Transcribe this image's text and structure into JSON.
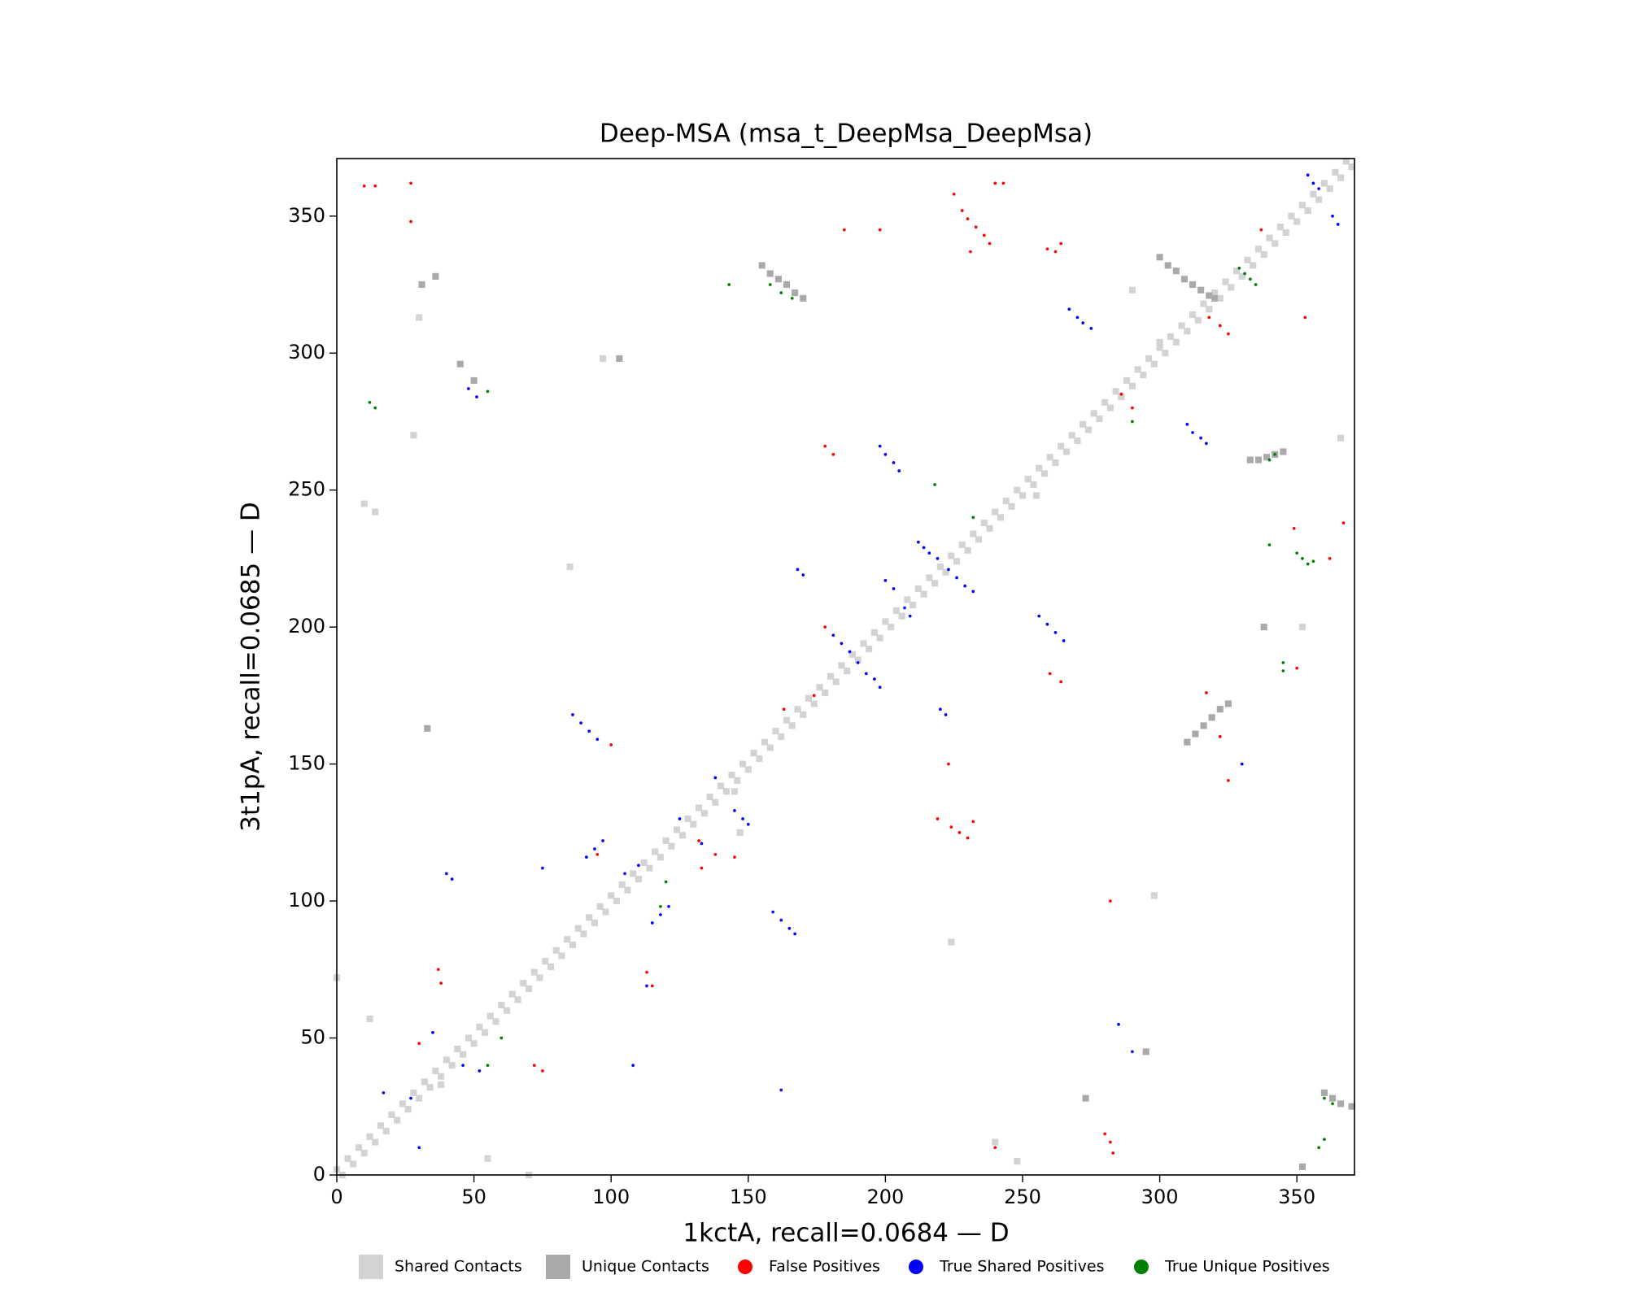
{
  "chart_data": {
    "type": "scatter",
    "title": "Deep-MSA (msa_t_DeepMsa_DeepMsa)",
    "x_label": "1kctA, recall=0.0684 — D",
    "y_label": "3t1pA, recall=0.0685 — D",
    "xlim": [
      0,
      371
    ],
    "ylim": [
      0,
      371
    ],
    "xticks": [
      0,
      50,
      100,
      150,
      200,
      250,
      300,
      350
    ],
    "yticks": [
      0,
      50,
      100,
      150,
      200,
      250,
      300,
      350
    ],
    "legend": "bottom",
    "series": [
      {
        "name": "Shared Contacts",
        "color": "#d3d3d3",
        "marker": "square",
        "x": [
          0,
          4,
          8,
          12,
          16,
          20,
          24,
          28,
          32,
          36,
          40,
          44,
          48,
          52,
          56,
          60,
          64,
          68,
          72,
          76,
          80,
          84,
          88,
          92,
          96,
          100,
          104,
          108,
          112,
          116,
          120,
          124,
          128,
          132,
          136,
          140,
          144,
          148,
          152,
          156,
          160,
          164,
          168,
          172,
          176,
          180,
          184,
          188,
          192,
          196,
          200,
          204,
          208,
          212,
          216,
          220,
          224,
          228,
          232,
          236,
          240,
          244,
          248,
          252,
          256,
          260,
          264,
          268,
          272,
          276,
          280,
          284,
          288,
          292,
          296,
          300,
          304,
          308,
          312,
          316,
          320,
          324,
          328,
          332,
          336,
          340,
          344,
          348,
          352,
          356,
          360,
          364,
          368,
          2,
          6,
          10,
          14,
          18,
          22,
          26,
          30,
          34,
          38,
          42,
          46,
          50,
          54,
          58,
          62,
          66,
          70,
          74,
          78,
          82,
          86,
          90,
          94,
          98,
          102,
          106,
          110,
          114,
          118,
          122,
          126,
          130,
          134,
          138,
          142,
          146,
          150,
          154,
          158,
          162,
          166,
          170,
          174,
          178,
          182,
          186,
          190,
          194,
          198,
          202,
          206,
          210,
          214,
          218,
          222,
          226,
          230,
          234,
          238,
          242,
          246,
          250,
          254,
          258,
          262,
          266,
          270,
          274,
          278,
          282,
          286,
          290,
          294,
          298,
          302,
          306,
          310,
          314,
          318,
          322,
          326,
          330,
          334,
          338,
          342,
          346,
          350,
          354,
          358,
          362,
          366,
          370,
          10,
          14,
          85,
          28,
          30,
          97,
          147,
          145,
          224,
          298,
          300,
          12,
          0,
          55,
          70,
          240,
          248,
          255,
          352,
          366,
          38,
          290
        ],
        "values": [
          2,
          6,
          10,
          14,
          18,
          22,
          26,
          30,
          34,
          38,
          42,
          46,
          50,
          54,
          58,
          62,
          66,
          70,
          74,
          78,
          82,
          86,
          90,
          94,
          98,
          102,
          106,
          110,
          114,
          118,
          122,
          126,
          130,
          134,
          138,
          142,
          146,
          150,
          154,
          158,
          162,
          166,
          170,
          174,
          178,
          182,
          186,
          190,
          194,
          198,
          202,
          206,
          210,
          214,
          218,
          222,
          226,
          230,
          234,
          238,
          242,
          246,
          250,
          254,
          258,
          262,
          266,
          270,
          274,
          278,
          282,
          286,
          290,
          294,
          298,
          302,
          306,
          310,
          314,
          318,
          322,
          326,
          330,
          334,
          338,
          342,
          346,
          350,
          354,
          358,
          362,
          366,
          370,
          0,
          4,
          8,
          12,
          16,
          20,
          24,
          28,
          32,
          36,
          40,
          44,
          48,
          52,
          56,
          60,
          64,
          68,
          72,
          76,
          80,
          84,
          88,
          92,
          96,
          100,
          104,
          108,
          112,
          116,
          120,
          124,
          128,
          132,
          136,
          140,
          144,
          148,
          152,
          156,
          160,
          164,
          168,
          172,
          176,
          180,
          184,
          188,
          192,
          196,
          200,
          204,
          208,
          212,
          216,
          220,
          224,
          228,
          232,
          236,
          240,
          244,
          248,
          252,
          256,
          260,
          264,
          268,
          272,
          276,
          280,
          284,
          288,
          292,
          296,
          300,
          304,
          308,
          312,
          316,
          320,
          324,
          328,
          332,
          336,
          340,
          344,
          348,
          352,
          356,
          360,
          364,
          368,
          245,
          242,
          222,
          270,
          313,
          298,
          125,
          140,
          85,
          102,
          304,
          57,
          72,
          6,
          0,
          12,
          5,
          248,
          200,
          269,
          33,
          323
        ]
      },
      {
        "name": "Unique Contacts",
        "color": "#a9a9a9",
        "marker": "square",
        "x": [
          155,
          158,
          161,
          164,
          167,
          170,
          300,
          303,
          306,
          309,
          312,
          315,
          318,
          320,
          333,
          336,
          339,
          342,
          345,
          310,
          313,
          316,
          319,
          322,
          325,
          360,
          363,
          366,
          370,
          33,
          45,
          50,
          103,
          31,
          36,
          295,
          273,
          352,
          338
        ],
        "values": [
          332,
          329,
          327,
          325,
          322,
          320,
          335,
          332,
          330,
          327,
          325,
          323,
          321,
          320,
          261,
          261,
          262,
          263,
          264,
          158,
          161,
          164,
          167,
          170,
          172,
          30,
          28,
          26,
          25,
          163,
          296,
          290,
          298,
          325,
          328,
          45,
          28,
          3,
          200
        ]
      },
      {
        "name": "False Positives",
        "color": "#ff0000",
        "marker": "circle",
        "x": [
          10,
          14,
          27,
          27,
          225,
          228,
          230,
          233,
          236,
          238,
          231,
          240,
          243,
          259,
          262,
          264,
          318,
          322,
          325,
          185,
          198,
          178,
          181,
          178,
          100,
          174,
          95,
          163,
          219,
          224,
          227,
          230,
          232,
          133,
          138,
          145,
          350,
          349,
          362,
          367,
          337,
          353,
          30,
          37,
          38,
          72,
          75,
          113,
          115,
          132,
          280,
          282,
          283,
          223,
          282,
          325,
          240,
          317,
          322,
          260,
          264,
          290,
          286
        ],
        "values": [
          361,
          361,
          362,
          348,
          358,
          352,
          349,
          346,
          343,
          340,
          337,
          362,
          362,
          338,
          337,
          340,
          313,
          310,
          307,
          345,
          345,
          266,
          263,
          200,
          157,
          175,
          117,
          170,
          130,
          127,
          125,
          123,
          129,
          112,
          117,
          116,
          185,
          236,
          225,
          238,
          345,
          313,
          48,
          75,
          70,
          40,
          38,
          74,
          69,
          122,
          15,
          12,
          8,
          150,
          100,
          144,
          10,
          176,
          160,
          183,
          180,
          280,
          285
        ]
      },
      {
        "name": "True Shared Positives",
        "color": "#0000ff",
        "marker": "circle",
        "x": [
          354,
          356,
          358,
          363,
          365,
          267,
          270,
          272,
          275,
          310,
          312,
          315,
          317,
          198,
          200,
          203,
          205,
          212,
          214,
          216,
          219,
          223,
          226,
          229,
          232,
          200,
          203,
          207,
          209,
          256,
          259,
          262,
          265,
          168,
          170,
          181,
          184,
          187,
          190,
          193,
          196,
          198,
          86,
          89,
          92,
          95,
          150,
          148,
          145,
          138,
          91,
          94,
          97,
          115,
          118,
          121,
          105,
          110,
          159,
          162,
          165,
          167,
          75,
          133,
          125,
          48,
          51,
          285,
          290,
          30,
          40,
          42,
          27,
          17,
          35,
          46,
          52,
          108,
          113,
          162,
          220,
          222,
          330
        ],
        "values": [
          365,
          362,
          360,
          350,
          347,
          316,
          313,
          311,
          309,
          274,
          271,
          269,
          267,
          266,
          263,
          260,
          257,
          231,
          229,
          227,
          225,
          221,
          218,
          215,
          213,
          217,
          214,
          207,
          204,
          204,
          201,
          198,
          195,
          221,
          219,
          197,
          194,
          191,
          187,
          183,
          181,
          178,
          168,
          165,
          162,
          159,
          128,
          130,
          133,
          145,
          116,
          119,
          122,
          92,
          95,
          98,
          110,
          113,
          96,
          93,
          90,
          88,
          112,
          121,
          130,
          287,
          284,
          55,
          45,
          10,
          110,
          108,
          28,
          30,
          52,
          40,
          38,
          40,
          69,
          31,
          170,
          168,
          150
        ]
      },
      {
        "name": "True Unique Positives",
        "color": "#008000",
        "marker": "circle",
        "x": [
          12,
          14,
          329,
          331,
          333,
          335,
          158,
          162,
          166,
          143,
          350,
          352,
          354,
          356,
          340,
          342,
          340,
          345,
          345,
          360,
          363,
          358,
          360,
          55,
          60,
          218,
          232,
          120,
          118,
          55,
          290
        ],
        "values": [
          282,
          280,
          331,
          329,
          327,
          325,
          325,
          322,
          320,
          325,
          227,
          225,
          223,
          224,
          230,
          263,
          261,
          187,
          184,
          28,
          26,
          10,
          13,
          286,
          50,
          252,
          240,
          107,
          98,
          40,
          275
        ]
      }
    ]
  }
}
